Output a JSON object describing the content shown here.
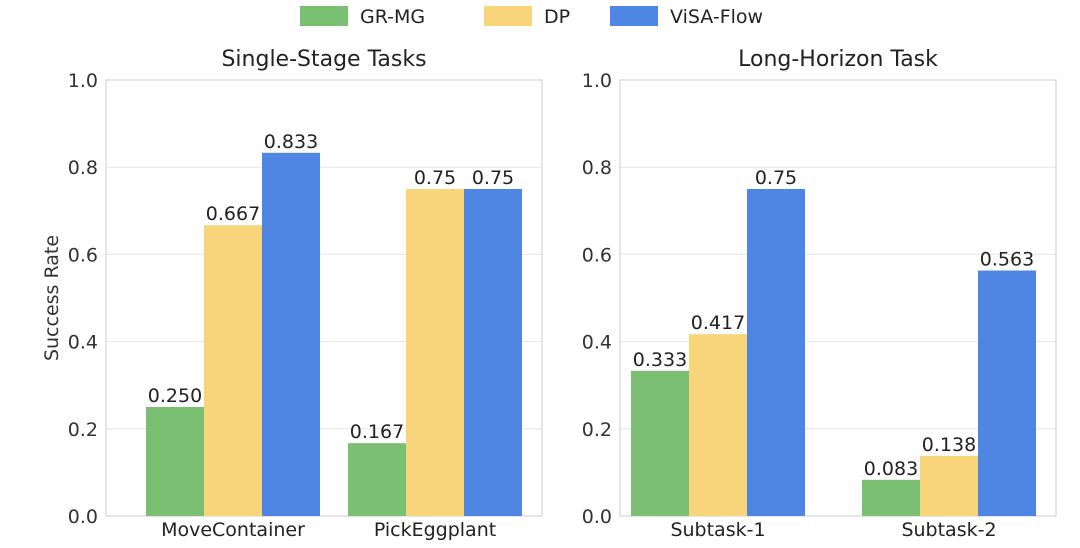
{
  "chart_data": [
    {
      "type": "bar",
      "title": "Single-Stage Tasks",
      "ylabel": "Success Rate",
      "xlabel": "",
      "ylim": [
        0,
        1.0
      ],
      "yticks": [
        "0.0",
        "0.2",
        "0.4",
        "0.6",
        "0.8",
        "1.0"
      ],
      "categories": [
        "MoveContainer",
        "PickEggplant"
      ],
      "series": [
        {
          "name": "GR-MG",
          "values": [
            0.25,
            0.167
          ],
          "labels": [
            "0.250",
            "0.167"
          ]
        },
        {
          "name": "DP",
          "values": [
            0.667,
            0.75
          ],
          "labels": [
            "0.667",
            "0.75"
          ]
        },
        {
          "name": "ViSA-Flow",
          "values": [
            0.833,
            0.75
          ],
          "labels": [
            "0.833",
            "0.75"
          ]
        }
      ]
    },
    {
      "type": "bar",
      "title": "Long-Horizon Task",
      "ylabel": "",
      "xlabel": "",
      "ylim": [
        0,
        1.0
      ],
      "yticks": [
        "0.0",
        "0.2",
        "0.4",
        "0.6",
        "0.8",
        "1.0"
      ],
      "categories": [
        "Subtask-1",
        "Subtask-2"
      ],
      "series": [
        {
          "name": "GR-MG",
          "values": [
            0.333,
            0.083
          ],
          "labels": [
            "0.333",
            "0.083"
          ]
        },
        {
          "name": "DP",
          "values": [
            0.417,
            0.138
          ],
          "labels": [
            "0.417",
            "0.138"
          ]
        },
        {
          "name": "ViSA-Flow",
          "values": [
            0.75,
            0.563
          ],
          "labels": [
            "0.75",
            "0.563"
          ]
        }
      ]
    }
  ],
  "legend": {
    "placement": "top-center",
    "entries": [
      {
        "name": "GR-MG",
        "color": "#7bbf72"
      },
      {
        "name": "DP",
        "color": "#f8d57a"
      },
      {
        "name": "ViSA-Flow",
        "color": "#4f85e3"
      }
    ]
  }
}
